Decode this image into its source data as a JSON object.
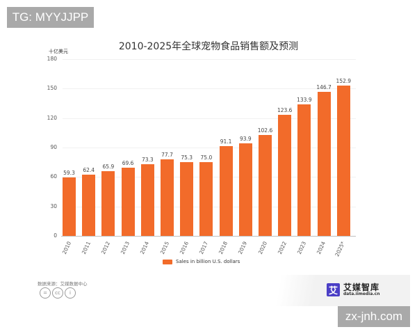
{
  "watermark_top": "TG: MYYJJPP",
  "watermark_bottom": "zx-jnh.com",
  "chart": {
    "title": "2010-2025年全球宠物食品销售额及预测",
    "unit": "十亿美元",
    "legend": "Sales in billion U.S. dollars",
    "source": "数据来源：艾媒数据中心",
    "bar_color": "#f26b2a"
  },
  "brand": {
    "logo_char": "艾",
    "name": "艾媒智库",
    "url": "data.iimedia.cn",
    "color": "#4b3fc6"
  },
  "license_icons": [
    "=",
    "cc",
    "i"
  ],
  "chart_data": {
    "type": "bar",
    "title": "2010-2025年全球宠物食品销售额及预测",
    "xlabel": "",
    "ylabel": "十亿美元",
    "ylim": [
      0,
      180
    ],
    "yticks": [
      0,
      30,
      60,
      90,
      120,
      150,
      180
    ],
    "grid": true,
    "legend_position": "bottom",
    "categories": [
      "2010",
      "2011",
      "2012",
      "2013",
      "2014",
      "2015",
      "2016",
      "2017",
      "2018",
      "2019",
      "2020",
      "2022",
      "2023",
      "2024",
      "2025*"
    ],
    "series": [
      {
        "name": "Sales in billion U.S. dollars",
        "color": "#f26b2a",
        "values": [
          59.3,
          62.4,
          65.9,
          69.6,
          73.3,
          77.7,
          75.3,
          75.0,
          91.1,
          93.9,
          102.6,
          123.6,
          133.9,
          146.7,
          152.9
        ]
      }
    ]
  }
}
